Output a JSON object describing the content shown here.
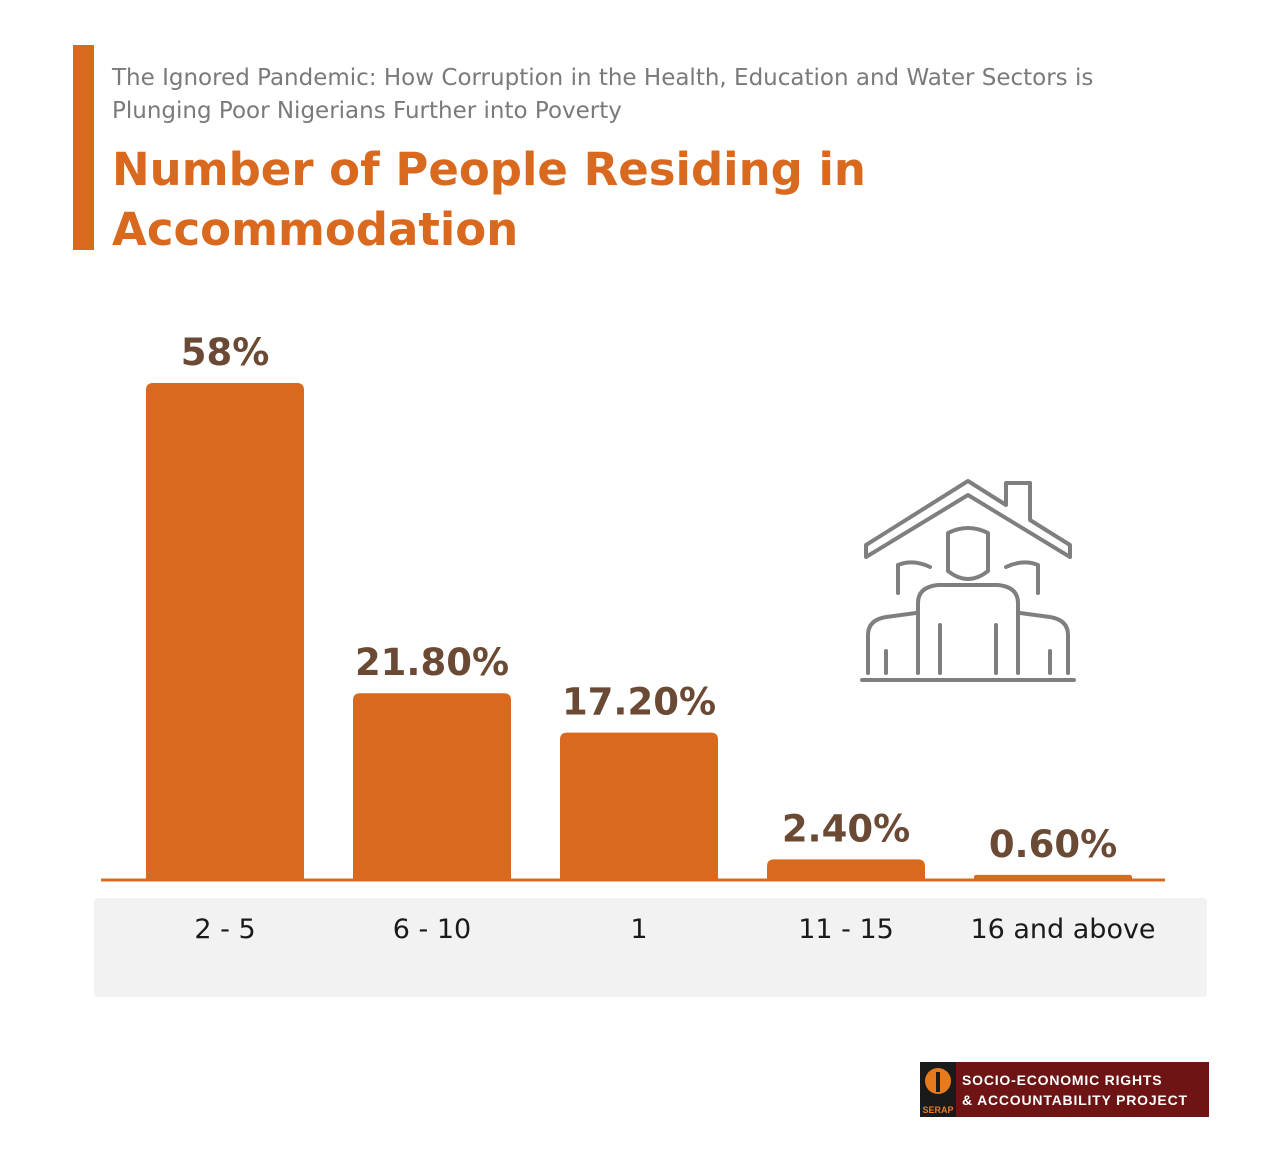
{
  "header": {
    "subtitle": "The Ignored Pandemic: How Corruption in the Health, Education and Water Sectors is Plunging Poor Nigerians Further into Poverty",
    "title": "Number of People Residing in Accommodation"
  },
  "colors": {
    "accent": "#d9691f",
    "value_label": "#6b4a35",
    "axis_band": "#f2f2f2",
    "icon_stroke": "#7f7f7f",
    "logo_bg": "#6e1414"
  },
  "chart_data": {
    "type": "bar",
    "title": "Number of People Residing in Accommodation",
    "categories": [
      "2 - 5",
      "6 - 10",
      "1",
      "11 - 15",
      "16 and above"
    ],
    "values": [
      58,
      21.8,
      17.2,
      2.4,
      0.6
    ],
    "value_labels": [
      "58%",
      "21.80%",
      "17.20%",
      "2.40%",
      "0.60%"
    ],
    "ylim": [
      0,
      58
    ],
    "grid": false,
    "legend": "none",
    "xlabel": "",
    "ylabel": ""
  },
  "icon": {
    "name": "house-with-people-icon"
  },
  "logo": {
    "line1": "SOCIO-ECONOMIC RIGHTS",
    "line2": "& ACCOUNTABILITY PROJECT",
    "abbr": "SERAP"
  }
}
